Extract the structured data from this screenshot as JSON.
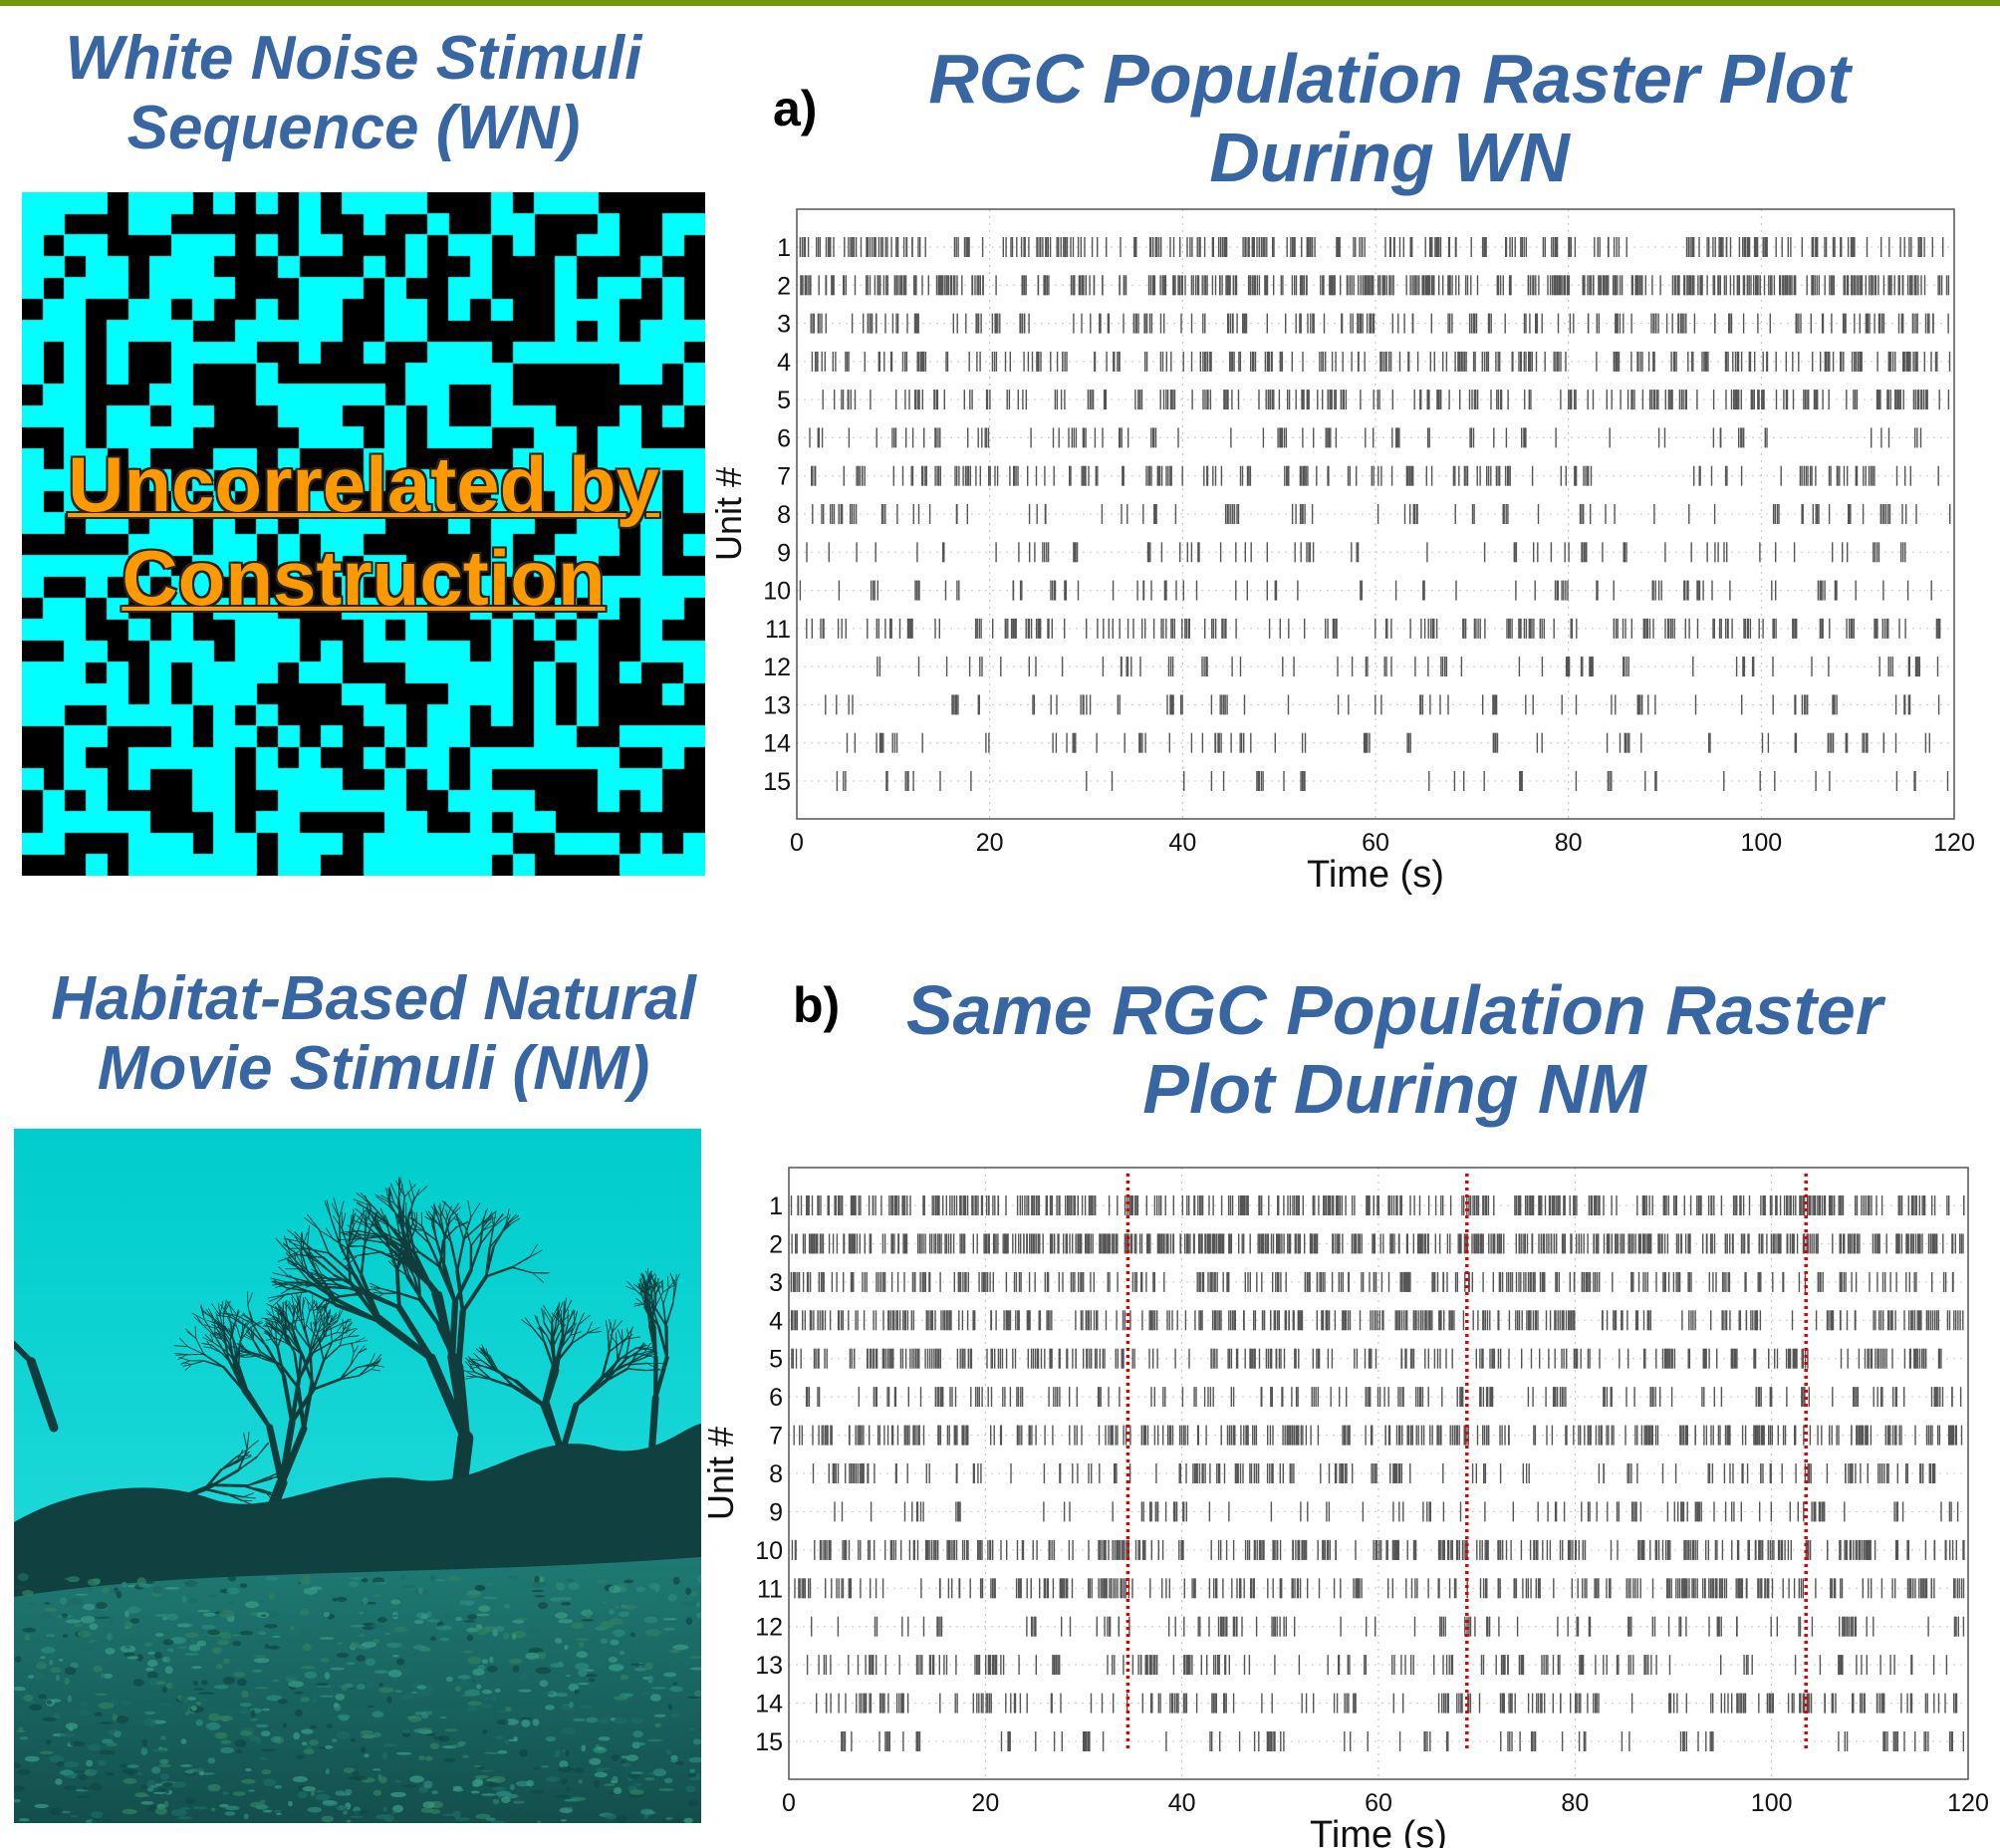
{
  "panel_a": {
    "letter": "a)",
    "stimulus_title": [
      "White Noise Stimuli",
      "Sequence (WN)"
    ],
    "overlay_text": [
      "Uncorrelated by",
      "Construction"
    ],
    "plot_title": [
      "RGC Population Raster Plot",
      "During WN"
    ]
  },
  "panel_b": {
    "letter": "b)",
    "stimulus_title": [
      "Habitat-Based Natural",
      "Movie Stimuli (NM)"
    ],
    "plot_title": [
      "Same RGC Population Raster",
      "Plot During NM"
    ]
  },
  "colors": {
    "title_blue": "#3766a3",
    "top_bar": "#6e9a0c",
    "wn_on": "#00ffff",
    "wn_off": "#000000",
    "overlay_orange": "#ff9900",
    "spike_gray": "#555555",
    "boundary_red": "#e00000"
  },
  "chart_data": [
    {
      "type": "raster",
      "xlabel": "Time (s)",
      "ylabel": "Unit #",
      "xlim": [
        0,
        120
      ],
      "xticks": [
        0,
        20,
        40,
        60,
        80,
        100,
        120
      ],
      "units": [
        1,
        2,
        3,
        4,
        5,
        6,
        7,
        8,
        9,
        10,
        11,
        12,
        13,
        14,
        15
      ],
      "unit_rates_hz": [
        1.9,
        2.7,
        1.2,
        1.4,
        1.2,
        0.6,
        0.8,
        0.5,
        0.6,
        0.6,
        1.2,
        0.4,
        0.4,
        0.5,
        0.3
      ],
      "grid": true
    },
    {
      "type": "raster",
      "xlabel": "Time (s)",
      "ylabel": "Unit #",
      "xlim": [
        0,
        120
      ],
      "xticks": [
        0,
        20,
        40,
        60,
        80,
        100,
        120
      ],
      "units": [
        1,
        2,
        3,
        4,
        5,
        6,
        7,
        8,
        9,
        10,
        11,
        12,
        13,
        14,
        15
      ],
      "unit_rates_hz": [
        2.8,
        3.5,
        1.8,
        1.9,
        1.8,
        1.1,
        2.0,
        1.0,
        0.8,
        1.9,
        1.6,
        0.7,
        1.0,
        1.3,
        0.6
      ],
      "boundaries_s": [
        34.5,
        69.0,
        103.5
      ],
      "grid": true
    }
  ]
}
